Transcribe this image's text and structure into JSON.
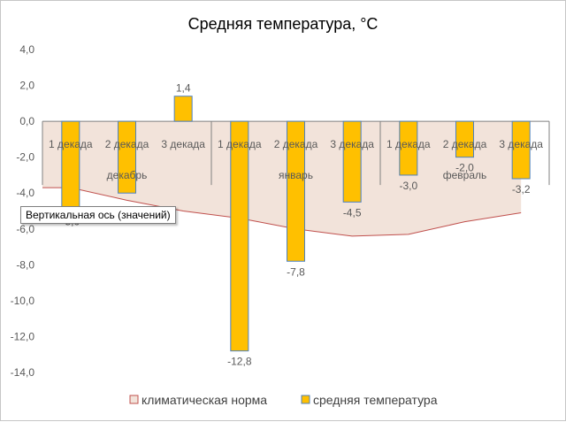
{
  "chart_data": {
    "type": "bar",
    "title": "Средняя температура, °C",
    "categories": [
      "1 декада",
      "2 декада",
      "3 декада",
      "1 декада",
      "2 декада",
      "3 декада",
      "1 декада",
      "2 декада",
      "3 декада"
    ],
    "groups": [
      {
        "label": "декабрь",
        "count": 3
      },
      {
        "label": "январь",
        "count": 3
      },
      {
        "label": "февраль",
        "count": 3
      }
    ],
    "series": [
      {
        "name": "климатическая норма",
        "type": "area",
        "values": [
          -3.7,
          -4.4,
          -5.0,
          -5.4,
          -6.0,
          -6.4,
          -6.3,
          -5.6,
          -5.1
        ],
        "fill": "#f2e3da",
        "stroke": "#c0504d"
      },
      {
        "name": "средняя температура",
        "type": "bar",
        "values": [
          -5.0,
          -4.0,
          1.4,
          -12.8,
          -7.8,
          -4.5,
          -3.0,
          -2.0,
          -3.2
        ],
        "data_labels": [
          "-5,0",
          "",
          "1,4",
          "-12,8",
          "-7,8",
          "-4,5",
          "-3,0",
          "-2,0",
          "-3,2"
        ],
        "fill": "#ffc000",
        "stroke": "#4f81bd"
      }
    ],
    "ylim": [
      -14,
      4
    ],
    "ytick_step": 2,
    "ytick_labels": [
      "4,0",
      "2,0",
      "0,0",
      "-2,0",
      "-4,0",
      "-6,0",
      "-8,0",
      "-10,0",
      "-12,0",
      "-14,0"
    ],
    "grid": false,
    "legend": "bottom",
    "xlabel": "",
    "ylabel": ""
  },
  "tooltip": {
    "text": "Вертикальная ось (значений)"
  }
}
